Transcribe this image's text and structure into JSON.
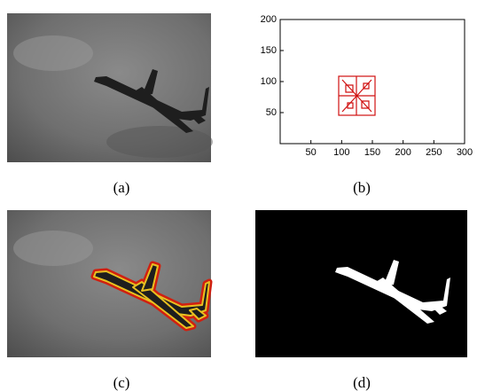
{
  "panels": [
    {
      "caption": "(a)"
    },
    {
      "caption": "(b)",
      "chart_data": {
        "type": "scatter",
        "xlim": [
          0,
          300
        ],
        "ylim": [
          0,
          200
        ],
        "xticks": [
          50,
          100,
          150,
          200,
          250,
          300
        ],
        "yticks": [
          50,
          100,
          150,
          200
        ]
      }
    },
    {
      "caption": "(c)"
    },
    {
      "caption": "(d)"
    }
  ]
}
